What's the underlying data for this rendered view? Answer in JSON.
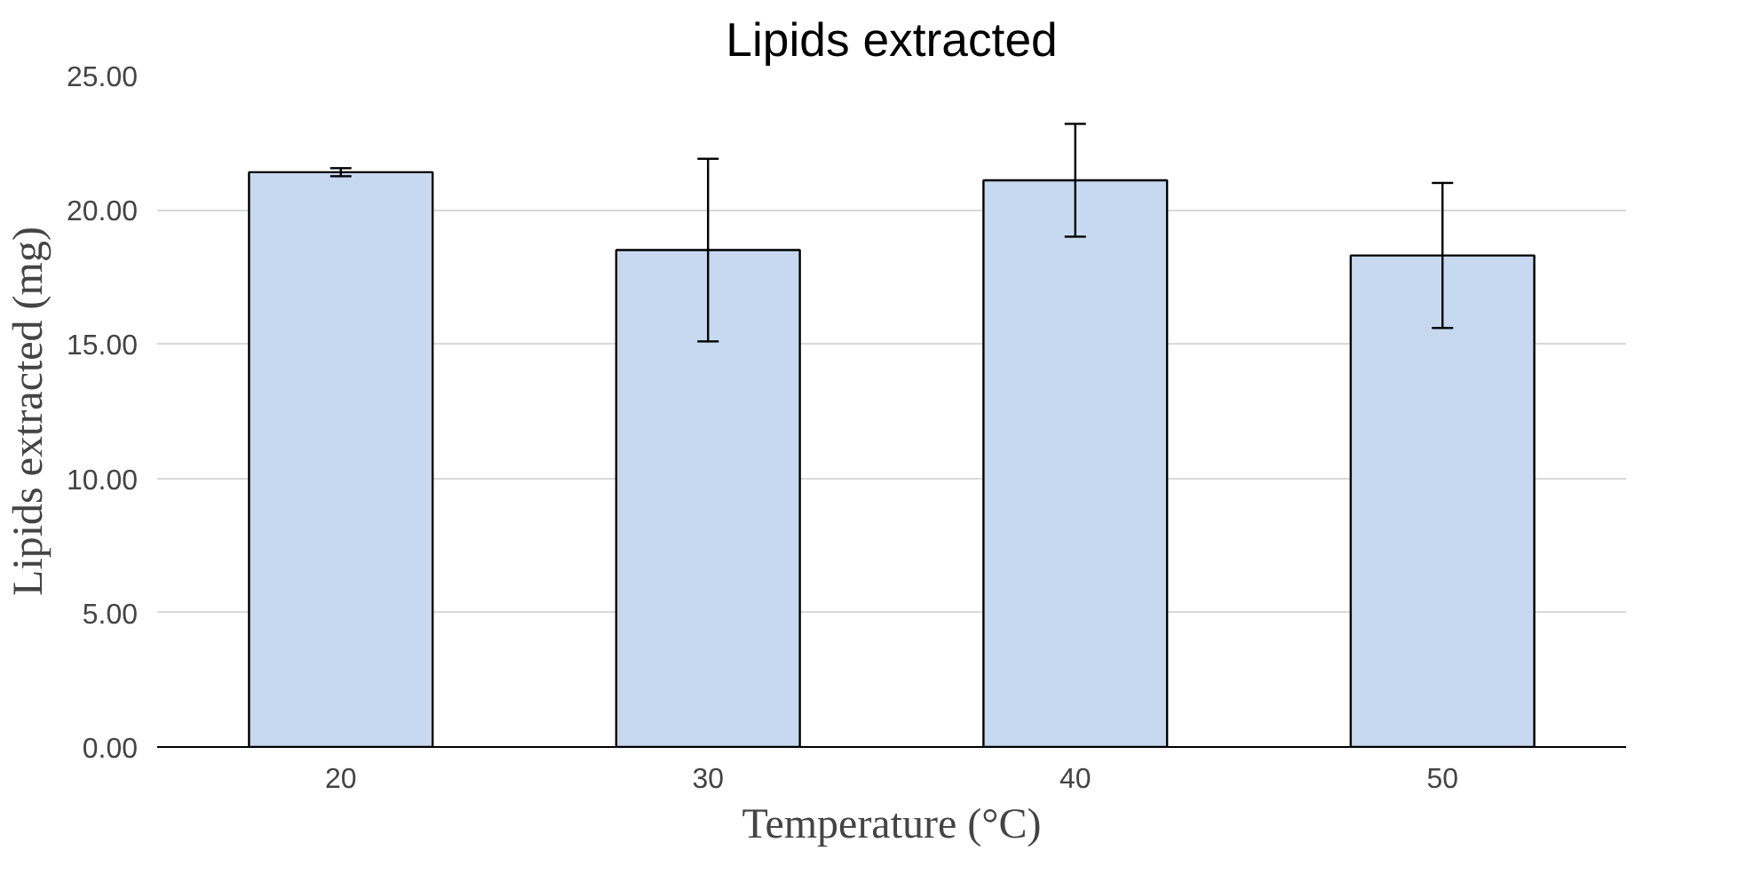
{
  "chart_data": {
    "type": "bar",
    "title": "Lipids extracted",
    "xlabel": "Temperature (°C)",
    "ylabel": "Lipids extracted (mg)",
    "categories": [
      "20",
      "30",
      "40",
      "50"
    ],
    "values": [
      21.4,
      18.5,
      21.1,
      18.3
    ],
    "errors": [
      0.15,
      3.4,
      2.1,
      2.7
    ],
    "color": "#c6d9f0",
    "ylim": [
      0,
      25
    ],
    "yticks": [
      {
        "value": 0,
        "label": "0.00"
      },
      {
        "value": 5,
        "label": "5.00"
      },
      {
        "value": 10,
        "label": "10.00"
      },
      {
        "value": 15,
        "label": "15.00"
      },
      {
        "value": 20,
        "label": "20.00"
      },
      {
        "value": 25,
        "label": "25.00"
      }
    ],
    "grid": "y"
  }
}
